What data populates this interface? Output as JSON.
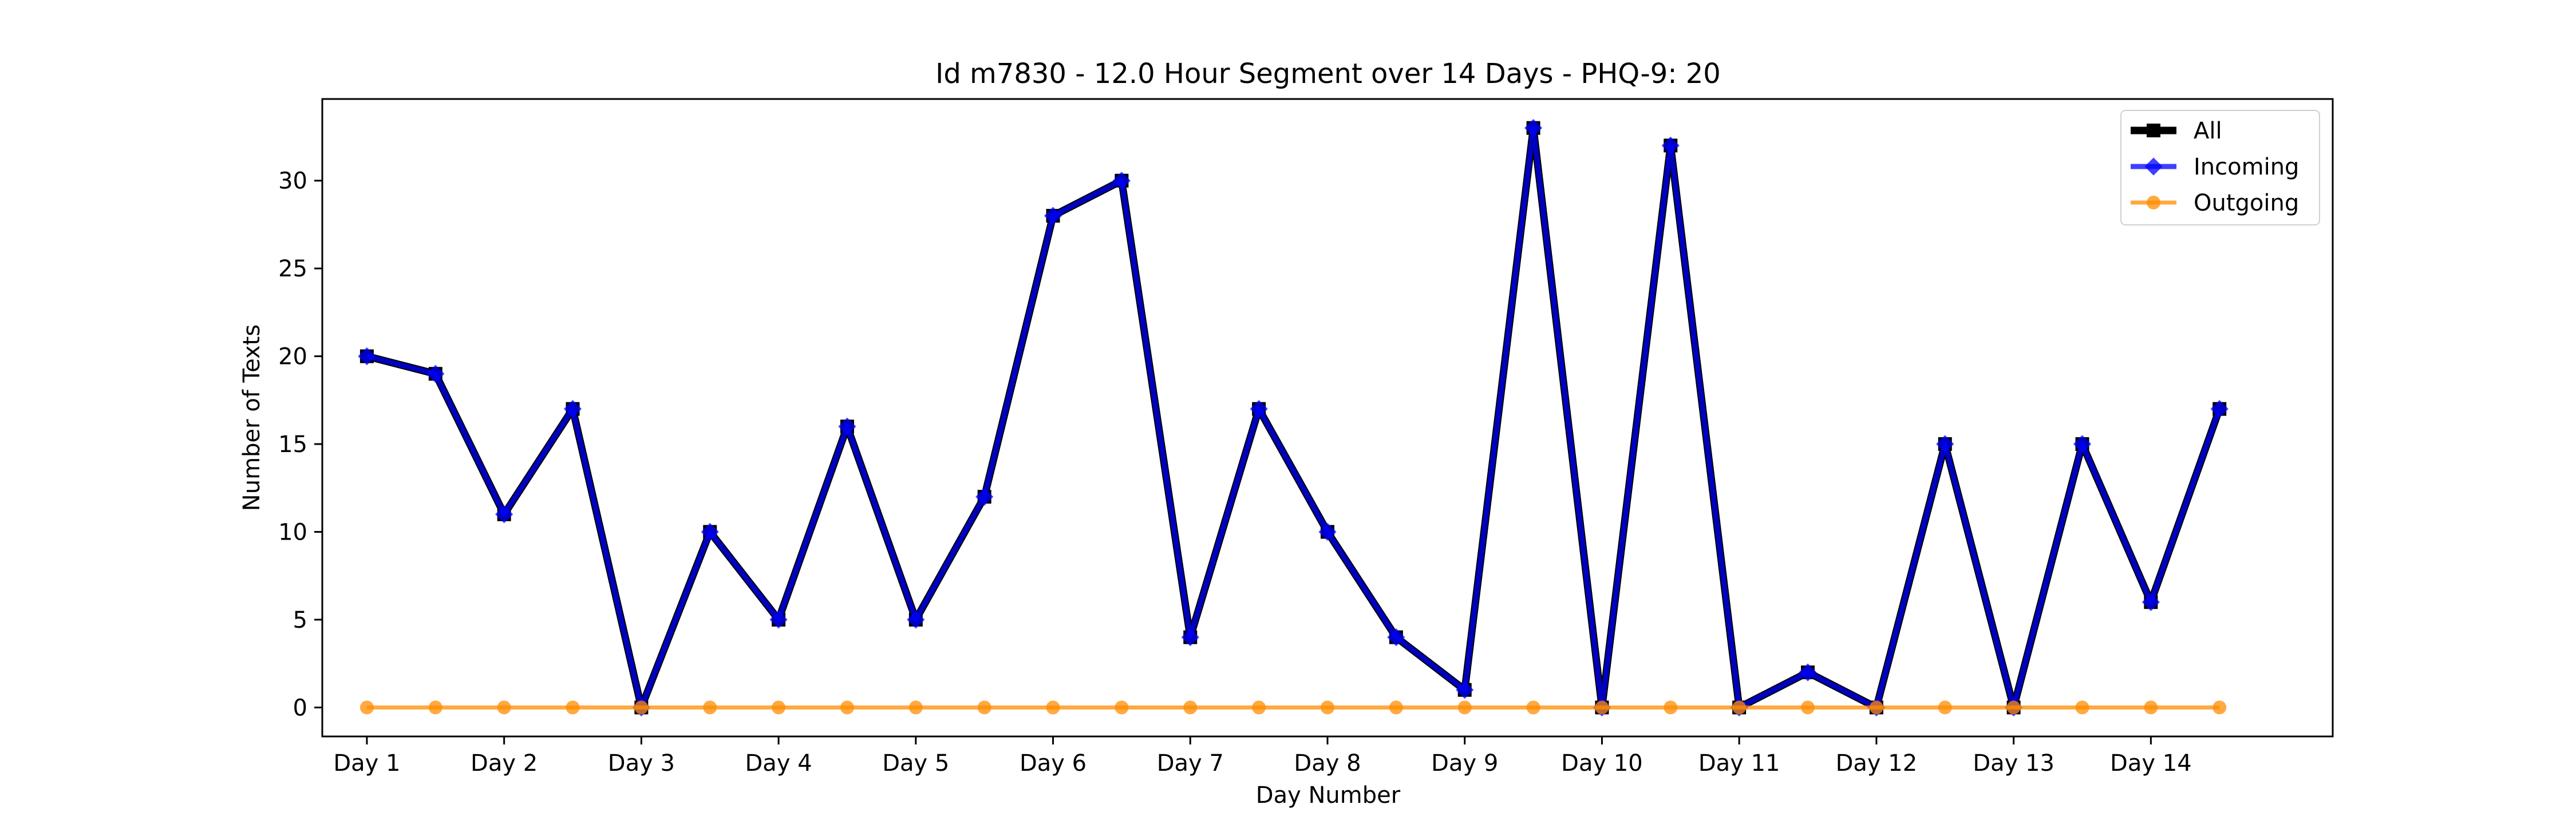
{
  "chart_data": {
    "type": "line",
    "title": "Id m7830 - 12.0 Hour Segment over 14 Days - PHQ-9: 20",
    "xlabel": "Day Number",
    "ylabel": "Number of Texts",
    "x_tick_labels": [
      "Day 1",
      "Day 2",
      "Day 3",
      "Day 4",
      "Day 5",
      "Day 6",
      "Day 7",
      "Day 8",
      "Day 9",
      "Day 10",
      "Day 11",
      "Day 12",
      "Day 13",
      "Day 14"
    ],
    "x_tick_positions": [
      1,
      3,
      5,
      7,
      9,
      11,
      13,
      15,
      17,
      19,
      21,
      23,
      25,
      27
    ],
    "x": [
      1,
      2,
      3,
      4,
      5,
      6,
      7,
      8,
      9,
      10,
      11,
      12,
      13,
      14,
      15,
      16,
      17,
      18,
      19,
      20,
      21,
      22,
      23,
      24,
      25,
      26,
      27,
      28
    ],
    "xlim": [
      0.35,
      29.65
    ],
    "ylim": [
      -1.65,
      34.65
    ],
    "y_ticks": [
      0,
      5,
      10,
      15,
      20,
      25,
      30
    ],
    "grid": false,
    "legend_position": "top-right",
    "series": [
      {
        "name": "All",
        "color": "#000000",
        "marker": "square",
        "values": [
          20,
          19,
          11,
          17,
          0,
          10,
          5,
          16,
          5,
          12,
          28,
          30,
          4,
          17,
          10,
          4,
          1,
          33,
          0,
          32,
          0,
          2,
          0,
          15,
          0,
          15,
          6,
          17
        ]
      },
      {
        "name": "Incoming",
        "color": "#0000ff",
        "marker": "diamond",
        "values": [
          20,
          19,
          11,
          17,
          0,
          10,
          5,
          16,
          5,
          12,
          28,
          30,
          4,
          17,
          10,
          4,
          1,
          33,
          0,
          32,
          0,
          2,
          0,
          15,
          0,
          15,
          6,
          17
        ]
      },
      {
        "name": "Outgoing",
        "color": "#ff8c00",
        "marker": "circle",
        "values": [
          0,
          0,
          0,
          0,
          0,
          0,
          0,
          0,
          0,
          0,
          0,
          0,
          0,
          0,
          0,
          0,
          0,
          0,
          0,
          0,
          0,
          0,
          0,
          0,
          0,
          0,
          0,
          0
        ]
      }
    ]
  }
}
